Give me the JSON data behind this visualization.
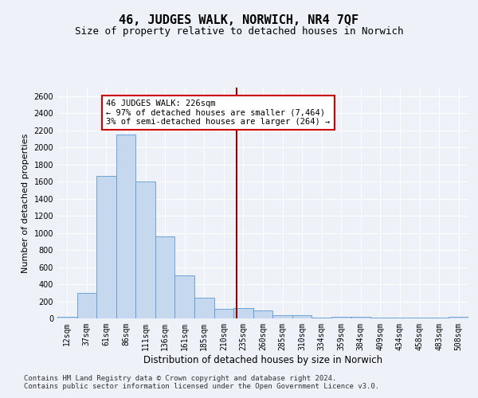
{
  "title": "46, JUDGES WALK, NORWICH, NR4 7QF",
  "subtitle": "Size of property relative to detached houses in Norwich",
  "xlabel": "Distribution of detached houses by size in Norwich",
  "ylabel": "Number of detached properties",
  "categories": [
    "12sqm",
    "37sqm",
    "61sqm",
    "86sqm",
    "111sqm",
    "136sqm",
    "161sqm",
    "185sqm",
    "210sqm",
    "235sqm",
    "260sqm",
    "285sqm",
    "310sqm",
    "334sqm",
    "359sqm",
    "384sqm",
    "409sqm",
    "434sqm",
    "458sqm",
    "483sqm",
    "508sqm"
  ],
  "values": [
    20,
    300,
    1670,
    2150,
    1600,
    960,
    505,
    240,
    115,
    120,
    90,
    40,
    40,
    10,
    15,
    20,
    5,
    5,
    5,
    5,
    20
  ],
  "bar_color": "#c5d8ed",
  "bar_edge_color": "#5b9bd5",
  "bar_width": 1.0,
  "vline_color": "#8b0000",
  "annotation_text": "46 JUDGES WALK: 226sqm\n← 97% of detached houses are smaller (7,464)\n3% of semi-detached houses are larger (264) →",
  "annotation_box_color": "#ffffff",
  "annotation_box_edge_color": "#cc0000",
  "ylim": [
    0,
    2700
  ],
  "yticks": [
    0,
    200,
    400,
    600,
    800,
    1000,
    1200,
    1400,
    1600,
    1800,
    2000,
    2200,
    2400,
    2600
  ],
  "footer_line1": "Contains HM Land Registry data © Crown copyright and database right 2024.",
  "footer_line2": "Contains public sector information licensed under the Open Government Licence v3.0.",
  "bg_color": "#eef2f8",
  "grid_color": "#ffffff",
  "title_fontsize": 11,
  "subtitle_fontsize": 9,
  "axis_label_fontsize": 8,
  "tick_fontsize": 7,
  "footer_fontsize": 6.5,
  "annotation_fontsize": 7.5
}
